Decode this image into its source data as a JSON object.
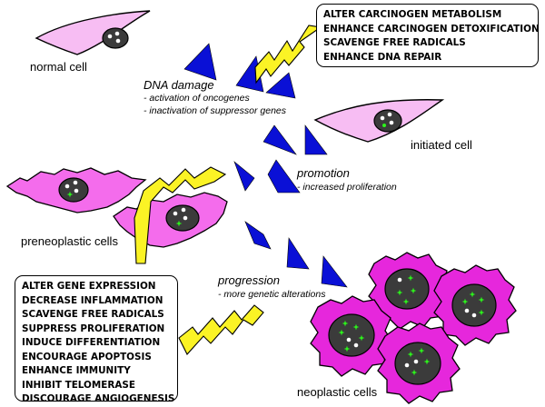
{
  "labels": {
    "normal_cell": "normal cell",
    "initiated_cell": "initiated cell",
    "preneoplastic_cells": "preneoplastic cells",
    "neoplastic_cells": "neoplastic cells"
  },
  "stages": {
    "dna_damage": {
      "title": "DNA damage",
      "details": [
        "- activation of oncogenes",
        "- inactivation of suppressor genes"
      ]
    },
    "promotion": {
      "title": "promotion",
      "details": [
        "- increased proliferation"
      ]
    },
    "progression": {
      "title": "progression",
      "details": [
        "- more genetic alterations"
      ]
    }
  },
  "top_box": {
    "items": [
      "ALTER CARCINOGEN METABOLISM",
      "ENHANCE CARCINOGEN DETOXIFICATION",
      "SCAVENGE FREE RADICALS",
      "ENHANCE DNA REPAIR"
    ]
  },
  "bottom_box": {
    "items": [
      "ALTER GENE EXPRESSION",
      "DECREASE INFLAMMATION",
      "SCAVENGE FREE RADICALS",
      "SUPPRESS PROLIFERATION",
      "INDUCE DIFFERENTIATION",
      "ENCOURAGE APOPTOSIS",
      "ENHANCE IMMUNITY",
      "INHIBIT TELOMERASE",
      "DISCOURAGE ANGIOGENESIS"
    ]
  },
  "colors": {
    "cell_fill": "#f7bdf3",
    "preneoplastic_fill": "#f46cec",
    "neoplastic_fill": "#e627dc",
    "nucleus": "#3b3b3b",
    "arrow": "#0a10d6",
    "lightning": "#fbf325",
    "green_dots": "#2cf51b"
  },
  "icons": {
    "arrowhead": "blue-triangle-arrow-icon",
    "inhibition": "lightning-bolt-icon"
  }
}
